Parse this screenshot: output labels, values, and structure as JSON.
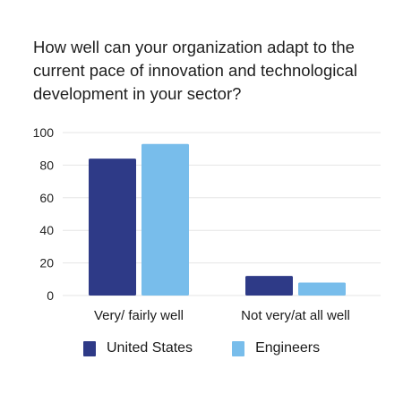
{
  "chart_data": {
    "type": "bar",
    "title": "How well can your organization adapt to the current pace of innovation and technological development in your sector?",
    "categories": [
      "Very/ fairly well",
      "Not very/at all well"
    ],
    "series": [
      {
        "name": "United States",
        "color": "#2E3A87",
        "values": [
          84,
          12
        ]
      },
      {
        "name": "Engineers",
        "color": "#78BDEB",
        "values": [
          93,
          8
        ]
      }
    ],
    "xlabel": "",
    "ylabel": "",
    "ylim": [
      0,
      100
    ],
    "yticks": [
      0,
      20,
      40,
      60,
      80,
      100
    ],
    "grid": true,
    "legend": "bottom"
  }
}
